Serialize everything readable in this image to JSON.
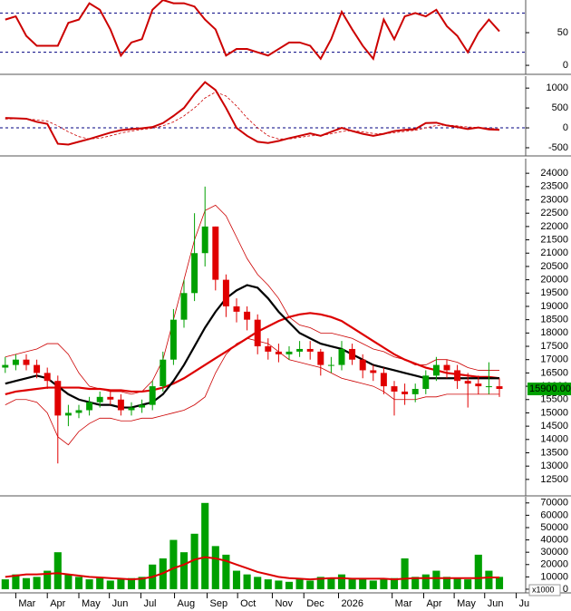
{
  "chart_data": [
    {
      "type": "line",
      "xlim": [
        0,
        50
      ],
      "ylim": [
        -11,
        100
      ],
      "yticks": [
        0,
        50
      ],
      "reference_lines": [
        20,
        80
      ],
      "series": [
        {
          "color": "#cc0000",
          "values": [
            70,
            75,
            45,
            30,
            30,
            30,
            65,
            70,
            95,
            85,
            55,
            15,
            35,
            40,
            85,
            100,
            95,
            95,
            90,
            70,
            55,
            15,
            25,
            25,
            20,
            15,
            25,
            35,
            35,
            30,
            10,
            40,
            82,
            55,
            30,
            10,
            70,
            40,
            75,
            80,
            75,
            85,
            60,
            45,
            20,
            50,
            70,
            52
          ]
        }
      ]
    },
    {
      "type": "line",
      "xlim": [
        0,
        50
      ],
      "ylim": [
        -660,
        1300
      ],
      "yticks": [
        -500,
        0,
        500,
        1000
      ],
      "reference_lines": [
        0
      ],
      "series": [
        {
          "color": "#cc0000",
          "values": [
            250,
            240,
            230,
            150,
            100,
            -400,
            -420,
            -350,
            -280,
            -200,
            -120,
            -60,
            -30,
            -10,
            20,
            120,
            300,
            500,
            850,
            1150,
            950,
            500,
            0,
            -200,
            -350,
            -380,
            -330,
            -260,
            -200,
            -140,
            -200,
            -100,
            0,
            -80,
            -150,
            -200,
            -150,
            -80,
            -50,
            -30,
            120,
            130,
            60,
            20,
            -30,
            10,
            -40,
            -50
          ]
        },
        {
          "color": "#cc0000",
          "dashed": true,
          "values": [
            220,
            230,
            230,
            200,
            170,
            50,
            -100,
            -220,
            -280,
            -260,
            -200,
            -130,
            -80,
            -40,
            -10,
            50,
            150,
            300,
            500,
            750,
            900,
            800,
            550,
            250,
            0,
            -200,
            -280,
            -280,
            -240,
            -200,
            -190,
            -150,
            -90,
            -70,
            -100,
            -140,
            -150,
            -120,
            -90,
            -60,
            0,
            60,
            70,
            50,
            20,
            10,
            -10,
            -30
          ]
        }
      ]
    },
    {
      "type": "candlestick",
      "xlim": [
        0,
        50
      ],
      "ylim": [
        11950,
        24550
      ],
      "yticks": [
        12500,
        13000,
        13500,
        14000,
        14500,
        15000,
        15500,
        16000,
        16500,
        17000,
        17500,
        18000,
        18500,
        19000,
        19500,
        20000,
        20500,
        21000,
        21500,
        22000,
        22500,
        23000,
        23500,
        24000
      ],
      "up_color": "#00a000",
      "down_color": "#e00000",
      "open": [
        16700,
        16800,
        17000,
        16800,
        16500,
        16200,
        14900,
        15000,
        15100,
        15400,
        15600,
        15500,
        15100,
        15200,
        15300,
        16000,
        17000,
        18500,
        19500,
        21000,
        22000,
        20000,
        19000,
        18800,
        18500,
        17500,
        17300,
        17200,
        17300,
        17400,
        17300,
        16800,
        16800,
        17400,
        17000,
        16600,
        16500,
        16000,
        15800,
        15700,
        15900,
        16400,
        16800,
        16600,
        16200,
        16100,
        16000,
        16000
      ],
      "high": [
        17100,
        17200,
        17200,
        17000,
        16700,
        16400,
        15300,
        15300,
        15600,
        15800,
        15800,
        15700,
        15400,
        15500,
        16200,
        17300,
        18900,
        20000,
        22500,
        23500,
        22000,
        20200,
        19300,
        19000,
        18700,
        17800,
        17600,
        17500,
        17700,
        17700,
        17400,
        17100,
        17700,
        17600,
        17200,
        16800,
        16700,
        16200,
        16100,
        16100,
        16600,
        17100,
        17000,
        16800,
        16500,
        16400,
        16900,
        16300
      ],
      "low": [
        16500,
        16600,
        16600,
        16300,
        15900,
        13100,
        14500,
        14800,
        14900,
        15200,
        15300,
        14900,
        14900,
        15000,
        15100,
        15800,
        16800,
        18200,
        19200,
        20500,
        19600,
        18600,
        18400,
        18100,
        17200,
        17000,
        16900,
        17000,
        17100,
        17000,
        16400,
        16500,
        16600,
        16800,
        16300,
        16200,
        15700,
        14900,
        15300,
        15400,
        15700,
        16200,
        16300,
        15900,
        15200,
        15700,
        15700,
        15600
      ],
      "close": [
        16800,
        17000,
        16800,
        16500,
        16200,
        14900,
        15000,
        15100,
        15400,
        15600,
        15500,
        15100,
        15200,
        15300,
        16000,
        17000,
        18500,
        19500,
        21000,
        22000,
        20000,
        19000,
        18800,
        18500,
        17500,
        17300,
        17200,
        17300,
        17400,
        17300,
        16800,
        16800,
        17400,
        17000,
        16600,
        16500,
        16000,
        15800,
        15700,
        15900,
        16400,
        16800,
        16600,
        16200,
        16100,
        16000,
        16000,
        15900
      ],
      "overlays": [
        {
          "color": "#cc0000",
          "width": 0.8,
          "values": [
            17100,
            17200,
            17300,
            17400,
            17600,
            17600,
            17200,
            16500,
            16000,
            15900,
            15800,
            15800,
            15700,
            15800,
            16200,
            17000,
            18500,
            20000,
            21500,
            22600,
            22800,
            22400,
            21600,
            20800,
            20200,
            19800,
            19300,
            18600,
            18300,
            18200,
            18000,
            18000,
            17900,
            17800,
            17600,
            17400,
            17300,
            17100,
            17000,
            16800,
            16800,
            17000,
            17000,
            16900,
            16700,
            16600,
            16600,
            16600
          ]
        },
        {
          "color": "#cc0000",
          "width": 0.8,
          "values": [
            15300,
            15500,
            15500,
            15400,
            15000,
            14100,
            13800,
            14300,
            14600,
            14800,
            14800,
            14700,
            14700,
            14800,
            14800,
            14900,
            15000,
            15100,
            15300,
            15600,
            16500,
            17200,
            17600,
            17800,
            17700,
            17600,
            17300,
            17000,
            16900,
            16800,
            16700,
            16500,
            16300,
            16200,
            16100,
            16000,
            15800,
            15500,
            15500,
            15500,
            15600,
            15600,
            15700,
            15700,
            15700,
            15700,
            15700,
            15700
          ]
        },
        {
          "color": "#dd0000",
          "width": 2.2,
          "values": [
            15700,
            15800,
            15850,
            15900,
            15950,
            15950,
            15950,
            15950,
            15900,
            15900,
            15850,
            15850,
            15800,
            15800,
            15850,
            15950,
            16100,
            16300,
            16550,
            16800,
            17050,
            17300,
            17550,
            17800,
            18050,
            18250,
            18450,
            18600,
            18700,
            18750,
            18700,
            18600,
            18450,
            18200,
            17950,
            17700,
            17450,
            17200,
            17000,
            16850,
            16700,
            16600,
            16500,
            16450,
            16400,
            16350,
            16350,
            16300
          ]
        },
        {
          "color": "#000000",
          "width": 2.2,
          "values": [
            16100,
            16200,
            16300,
            16400,
            16300,
            16000,
            15700,
            15500,
            15400,
            15300,
            15300,
            15200,
            15200,
            15300,
            15400,
            15700,
            16200,
            16800,
            17500,
            18200,
            18800,
            19300,
            19600,
            19800,
            19700,
            19300,
            18800,
            18400,
            18000,
            17800,
            17600,
            17500,
            17400,
            17200,
            17000,
            16800,
            16700,
            16600,
            16500,
            16400,
            16300,
            16300,
            16300,
            16300,
            16300,
            16300,
            16300,
            16300
          ]
        }
      ],
      "last_price_label": "15900.00"
    },
    {
      "type": "bar",
      "xlim": [
        0,
        50
      ],
      "ylim": [
        -1500,
        75000
      ],
      "yticks": [
        0,
        10000,
        20000,
        30000,
        40000,
        50000,
        60000,
        70000
      ],
      "color": "#00a000",
      "values": [
        8000,
        12000,
        9000,
        10000,
        15000,
        30000,
        12000,
        10000,
        8000,
        9000,
        7000,
        8000,
        9000,
        10000,
        20000,
        25000,
        40000,
        30000,
        45000,
        70000,
        35000,
        28000,
        15000,
        12000,
        10000,
        8000,
        7000,
        6000,
        8000,
        7000,
        10000,
        9000,
        12000,
        8000,
        9000,
        7000,
        8000,
        9000,
        25000,
        10000,
        12000,
        15000,
        10000,
        9000,
        8000,
        28000,
        15000,
        10000
      ],
      "overlays": [
        {
          "color": "#dd0000",
          "width": 2,
          "values": [
            10000,
            11000,
            12000,
            12000,
            12500,
            13000,
            12000,
            11000,
            10000,
            9500,
            9000,
            8500,
            8000,
            8500,
            10000,
            13000,
            17000,
            20000,
            24000,
            26000,
            25000,
            23000,
            20000,
            17000,
            14000,
            12000,
            10000,
            9000,
            8500,
            8000,
            8500,
            9000,
            9000,
            8500,
            8500,
            8500,
            8500,
            8000,
            8500,
            9000,
            9000,
            9000,
            9000,
            9000,
            9000,
            9000,
            9500,
            9500
          ]
        }
      ],
      "unit_label": "x1000",
      "xticks": [
        {
          "value": 1.5,
          "label": "Mar"
        },
        {
          "value": 4.5,
          "label": "Apr"
        },
        {
          "value": 7.5,
          "label": "May"
        },
        {
          "value": 10.4,
          "label": "Jun"
        },
        {
          "value": 13.4,
          "label": "Jul"
        },
        {
          "value": 16.6,
          "label": "Aug"
        },
        {
          "value": 19.7,
          "label": "Sep"
        },
        {
          "value": 22.6,
          "label": "Oct"
        },
        {
          "value": 25.9,
          "label": "Nov"
        },
        {
          "value": 28.9,
          "label": "Dec"
        },
        {
          "value": 32.2,
          "label": "2026"
        },
        {
          "value": 37.3,
          "label": "Mar"
        },
        {
          "value": 40.3,
          "label": "Apr"
        },
        {
          "value": 43.2,
          "label": "May"
        },
        {
          "value": 46.1,
          "label": "Jun"
        },
        {
          "value": 49.1,
          "label": "Ju"
        }
      ]
    }
  ]
}
